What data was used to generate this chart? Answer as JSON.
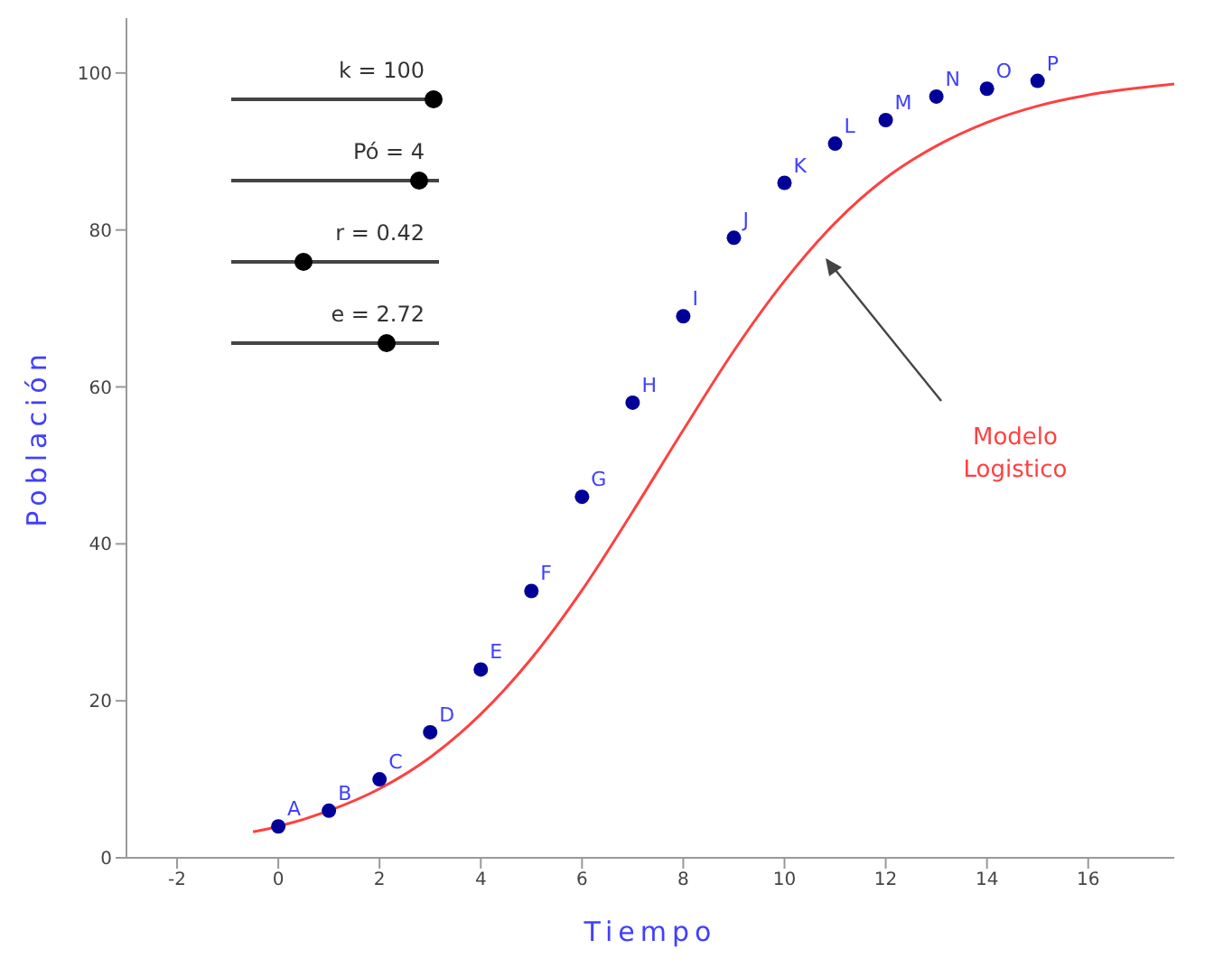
{
  "chart_data": {
    "type": "scatter",
    "xlabel": "Tiempo",
    "ylabel": "Población",
    "xlim": [
      -3,
      17.7
    ],
    "ylim": [
      0,
      107
    ],
    "xticks": [
      -2,
      0,
      2,
      4,
      6,
      8,
      10,
      12,
      14,
      16
    ],
    "yticks": [
      0,
      20,
      40,
      60,
      80,
      100
    ],
    "marker": "circle",
    "grid": false,
    "legend": false,
    "series": [
      {
        "color": "#000099",
        "x": [
          0,
          1,
          2,
          3,
          4,
          5,
          6,
          7,
          8,
          9,
          10,
          11,
          12,
          13,
          14,
          15
        ],
        "values": [
          4,
          6,
          10,
          16,
          24,
          34,
          46,
          58,
          69,
          79,
          86,
          91,
          94,
          97,
          98,
          99
        ],
        "value_labels": [
          "A",
          "B",
          "C",
          "D",
          "E",
          "F",
          "G",
          "H",
          "I",
          "J",
          "K",
          "L",
          "M",
          "N",
          "O",
          "P"
        ]
      },
      {
        "type": "line",
        "color": "#ff4040",
        "marker": "none",
        "x": [
          -0.5,
          0,
          1,
          2,
          3,
          4,
          5,
          6,
          7,
          8,
          9,
          10,
          11,
          12,
          13,
          14,
          15,
          16,
          17,
          17.7
        ],
        "values": [
          3.3,
          4,
          6,
          8.8,
          12.8,
          18.3,
          25.4,
          34.1,
          44.1,
          54.5,
          64.6,
          73.5,
          80.9,
          86.6,
          90.7,
          93.7,
          95.8,
          97.2,
          98.1,
          98.6
        ]
      }
    ],
    "annotations": [
      "k = 100",
      "Pó = 4",
      "r = 0.42",
      "e = 2.72",
      "Modelo Logistico"
    ]
  }
}
